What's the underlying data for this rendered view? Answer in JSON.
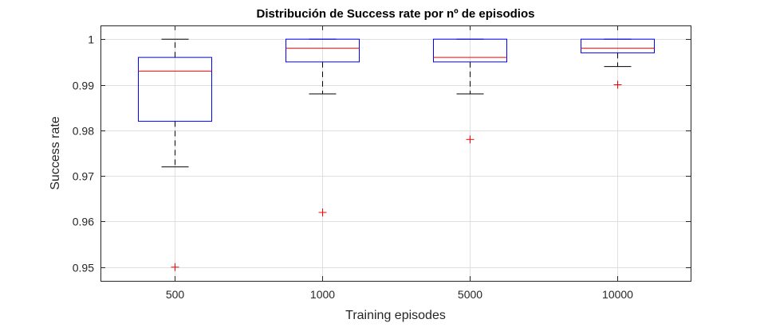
{
  "chart_data": {
    "type": "boxplot",
    "title": "Distribución de Success rate por nº de episodios",
    "xlabel": "Training episodes",
    "ylabel": "Success rate",
    "ylim": [
      0.947,
      1.003
    ],
    "yticks": [
      0.95,
      0.96,
      0.97,
      0.98,
      0.99,
      1
    ],
    "ytick_labels": [
      "0.95",
      "0.96",
      "0.97",
      "0.98",
      "0.99",
      "1"
    ],
    "grid": true,
    "categories": [
      "500",
      "1000",
      "5000",
      "10000"
    ],
    "boxes": [
      {
        "category": "500",
        "whisker_low": 0.972,
        "q1": 0.982,
        "median": 0.993,
        "q3": 0.996,
        "whisker_high": 1.0,
        "outliers": [
          0.95
        ]
      },
      {
        "category": "1000",
        "whisker_low": 0.988,
        "q1": 0.995,
        "median": 0.998,
        "q3": 1.0,
        "whisker_high": 1.0,
        "outliers": [
          0.962
        ]
      },
      {
        "category": "5000",
        "whisker_low": 0.988,
        "q1": 0.995,
        "median": 0.996,
        "q3": 1.0,
        "whisker_high": 1.0,
        "outliers": [
          0.978
        ]
      },
      {
        "category": "10000",
        "whisker_low": 0.994,
        "q1": 0.997,
        "median": 0.998,
        "q3": 1.0,
        "whisker_high": 1.0,
        "outliers": [
          0.99
        ]
      }
    ],
    "colors": {
      "box": "#0000ff",
      "median": "#ff0000",
      "whisker": "#000000",
      "outlier": "#ff0000",
      "grid": "#dfdfdf",
      "axis": "#262626",
      "text": "#262626"
    }
  }
}
